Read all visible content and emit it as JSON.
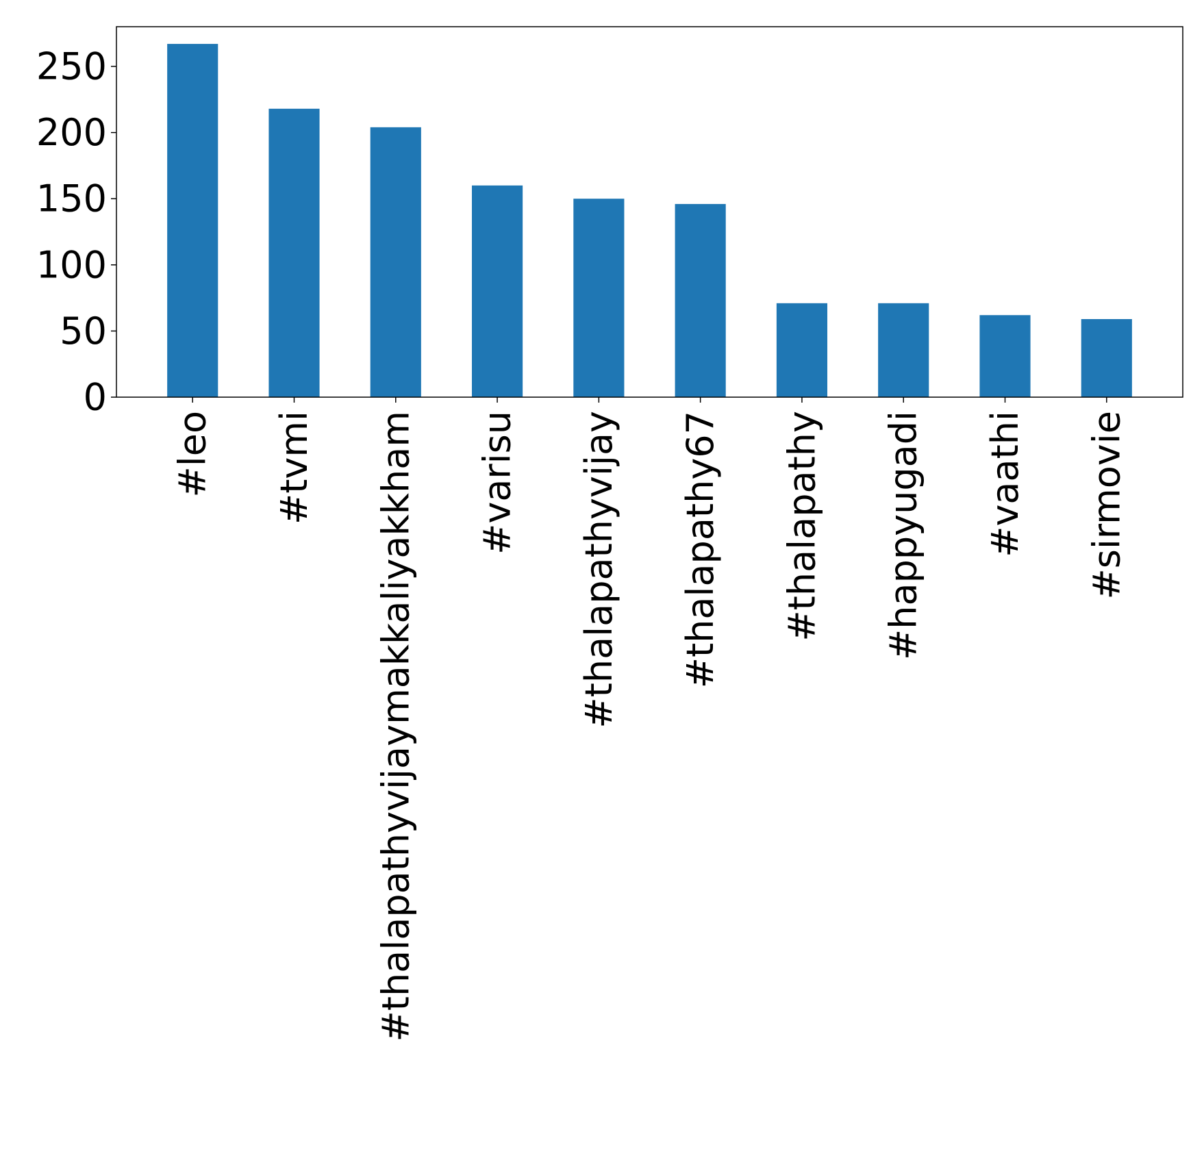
{
  "chart_data": {
    "type": "bar",
    "title": "",
    "xlabel": "",
    "ylabel": "",
    "categories": [
      "#leo",
      "#tvmi",
      "#thalapathyvijaymakkaliyakkham",
      "#varisu",
      "#thalapathyvijay",
      "#thalapathy67",
      "#thalapathy",
      "#happyugadi",
      "#vaathi",
      "#sirmovie"
    ],
    "values": [
      267,
      218,
      204,
      160,
      150,
      146,
      71,
      71,
      62,
      59
    ],
    "ylim": [
      0,
      280
    ],
    "yticks": [
      0,
      50,
      100,
      150,
      200,
      250
    ],
    "grid": false,
    "legend": "none",
    "bar_color": "#1f77b4"
  }
}
